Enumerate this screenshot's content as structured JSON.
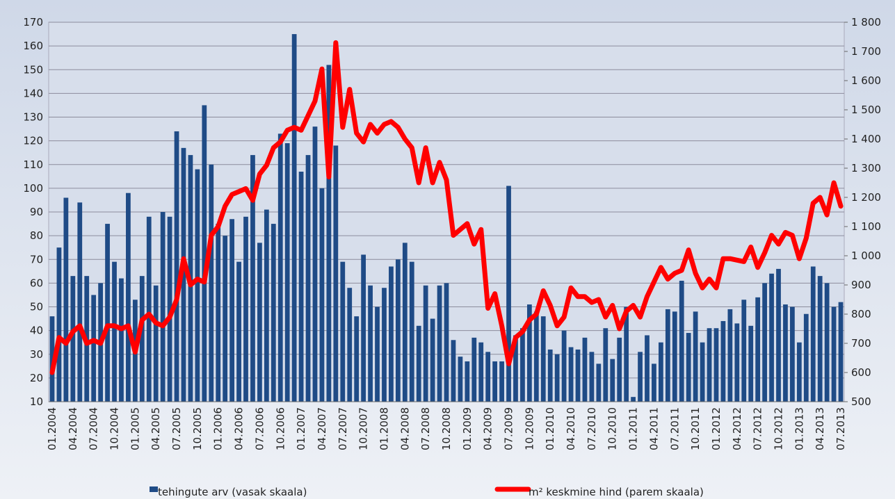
{
  "chart_data": {
    "type": "bar_line",
    "categories": [
      "01.2004",
      null,
      null,
      "04.2004",
      null,
      null,
      "07.2004",
      null,
      null,
      "10.2004",
      null,
      null,
      "01.2005",
      null,
      null,
      "04.2005",
      null,
      null,
      "07.2005",
      null,
      null,
      "10.2005",
      null,
      null,
      "01.2006",
      null,
      null,
      "04.2006",
      null,
      null,
      "07.2006",
      null,
      null,
      "10.2006",
      null,
      null,
      "01.2007",
      null,
      null,
      "04.2007",
      null,
      null,
      "07.2007",
      null,
      null,
      "10.2007",
      null,
      null,
      "01.2008",
      null,
      null,
      "04.2008",
      null,
      null,
      "07.2008",
      null,
      null,
      "10.2008",
      null,
      null,
      "01.2009",
      null,
      null,
      "04.2009",
      null,
      null,
      "07.2009",
      null,
      null,
      "10.2009",
      null,
      null,
      "01.2010",
      null,
      null,
      "04.2010",
      null,
      null,
      "07.2010",
      null,
      null,
      "10.2010",
      null,
      null,
      "01.2011",
      null,
      null,
      "04.2011",
      null,
      null,
      "07.2011",
      null,
      null,
      "10.2011",
      null,
      null,
      "01.2012",
      null,
      null,
      "04.2012",
      null,
      null,
      "07.2012",
      null,
      null,
      "10.2012",
      null,
      null,
      "01.2013",
      null,
      null,
      "04.2013",
      null,
      null,
      "07.2013"
    ],
    "series": [
      {
        "name": "tehingute arv (vasak skaala)",
        "color": "#1f4b86",
        "kind": "bar",
        "values": [
          46,
          75,
          96,
          63,
          94,
          63,
          55,
          60,
          85,
          69,
          62,
          98,
          53,
          63,
          88,
          59,
          90,
          88,
          124,
          117,
          114,
          108,
          135,
          110,
          85,
          80,
          87,
          69,
          88,
          114,
          77,
          91,
          85,
          123,
          119,
          165,
          107,
          114,
          126,
          100,
          152,
          118,
          69,
          58,
          46,
          72,
          59,
          50,
          58,
          67,
          70,
          77,
          69,
          42,
          59,
          45,
          59,
          60,
          36,
          29,
          27,
          37,
          35,
          31,
          27,
          27,
          101,
          38,
          41,
          51,
          48,
          46,
          32,
          30,
          40,
          33,
          32,
          37,
          31,
          26,
          41,
          28,
          37,
          50,
          12,
          31,
          38,
          26,
          35,
          49,
          48,
          61,
          39,
          48,
          35,
          41,
          41,
          44,
          49,
          43,
          53,
          42,
          54,
          60,
          64,
          66,
          51,
          50,
          35,
          47,
          67,
          63,
          60,
          50,
          52
        ]
      },
      {
        "name": "m² keskmine hind (parem skaala)",
        "color": "#ff0000",
        "kind": "line",
        "axis": "y2",
        "values": [
          600,
          720,
          700,
          740,
          760,
          700,
          710,
          700,
          760,
          760,
          750,
          760,
          670,
          780,
          800,
          770,
          760,
          790,
          850,
          990,
          900,
          920,
          910,
          1070,
          1100,
          1170,
          1210,
          1220,
          1230,
          1190,
          1280,
          1310,
          1370,
          1390,
          1430,
          1440,
          1430,
          1480,
          1530,
          1640,
          1270,
          1730,
          1440,
          1570,
          1420,
          1390,
          1450,
          1420,
          1450,
          1460,
          1440,
          1400,
          1370,
          1250,
          1370,
          1250,
          1320,
          1260,
          1070,
          1090,
          1110,
          1040,
          1090,
          820,
          870,
          760,
          630,
          720,
          740,
          780,
          800,
          880,
          830,
          760,
          790,
          890,
          860,
          860,
          840,
          850,
          790,
          830,
          750,
          810,
          830,
          790,
          860,
          910,
          960,
          920,
          940,
          950,
          1020,
          940,
          890,
          920,
          890,
          990,
          990,
          985,
          980,
          1030,
          960,
          1010,
          1070,
          1040,
          1080,
          1070,
          990,
          1060,
          1180,
          1200,
          1140,
          1250,
          1170
        ]
      }
    ],
    "ylim": [
      10,
      170
    ],
    "yticks": [
      10,
      20,
      30,
      40,
      50,
      60,
      70,
      80,
      90,
      100,
      110,
      120,
      130,
      140,
      150,
      160,
      170
    ],
    "y2lim": [
      500,
      1800
    ],
    "y2ticks": [
      500,
      600,
      700,
      800,
      900,
      {
        "value": 1000,
        "label": "1 000"
      },
      {
        "value": 1100,
        "label": "1 100"
      },
      {
        "value": 1200,
        "label": "1 200"
      },
      {
        "value": 1300,
        "label": "1 300"
      },
      {
        "value": 1400,
        "label": "1 400"
      },
      {
        "value": 1500,
        "label": "1 500"
      },
      {
        "value": 1600,
        "label": "1 600"
      },
      {
        "value": 1700,
        "label": "1 700"
      },
      {
        "value": 1800,
        "label": "1 800"
      }
    ],
    "grid": true,
    "legend_position": "bottom"
  }
}
